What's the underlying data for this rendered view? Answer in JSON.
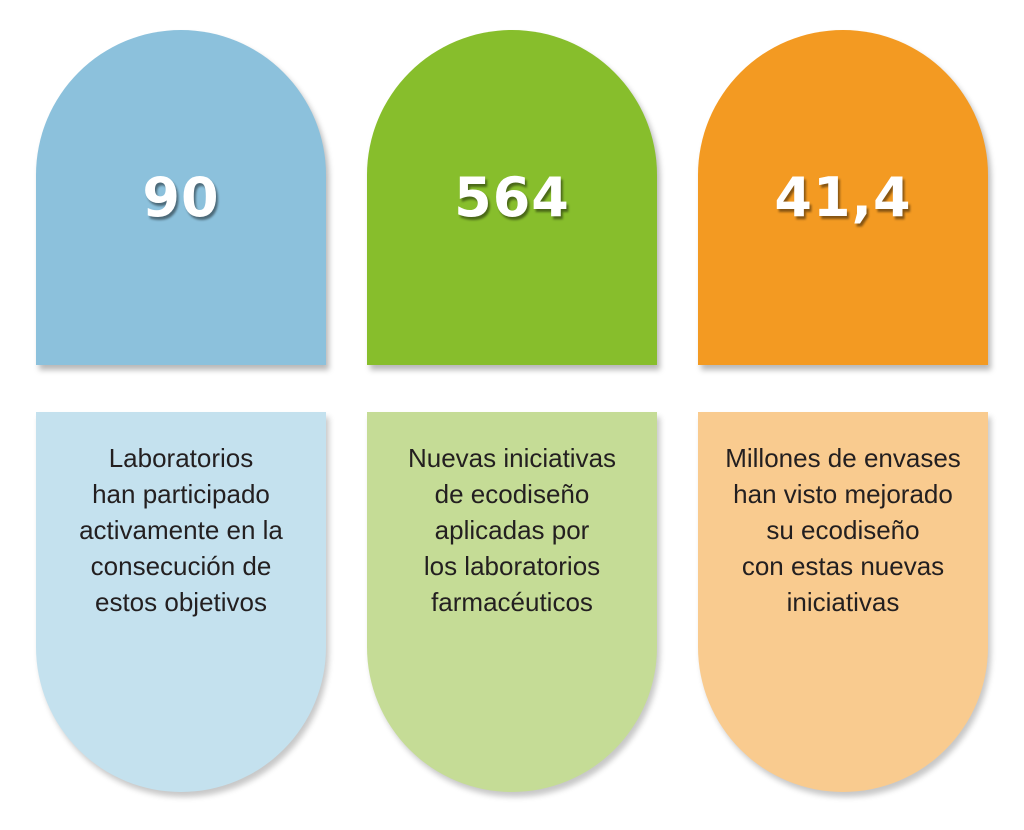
{
  "cards": [
    {
      "value": "90",
      "top_color": "#8cc1dc",
      "bottom_color": "#c4e1ee",
      "lines": [
        "Laboratorios",
        "han participado",
        "activamente en la",
        "consecución de",
        "estos objetivos"
      ]
    },
    {
      "value": "564",
      "top_color": "#87be2c",
      "bottom_color": "#c5dc96",
      "lines": [
        "Nuevas iniciativas",
        "de ecodiseño",
        "aplicadas por",
        "los laboratorios",
        "farmacéuticos"
      ]
    },
    {
      "value": "41,4",
      "top_color": "#f39a22",
      "bottom_color": "#f9cb8f",
      "lines": [
        "Millones de envases",
        "han visto mejorado",
        "su ecodiseño",
        "con estas nuevas",
        "iniciativas"
      ]
    }
  ]
}
